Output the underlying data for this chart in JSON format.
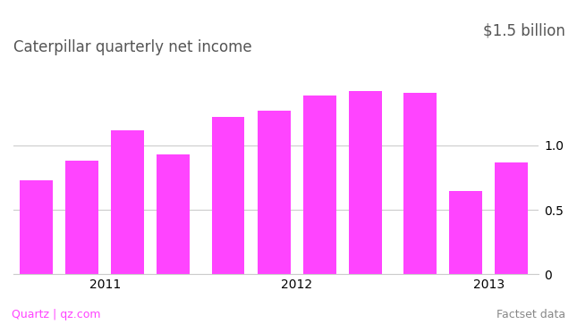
{
  "title": "Caterpillar quarterly net income",
  "right_label": "$1.5 billion",
  "footer_left": "Quartz | qz.com",
  "footer_right": "Factset data",
  "bar_color": "#ff44ff",
  "background_color": "#ffffff",
  "text_color": "#555555",
  "values": [
    0.73,
    0.88,
    1.12,
    0.93,
    1.22,
    1.27,
    1.39,
    1.42,
    1.41,
    0.65,
    0.87
  ],
  "x_positions": [
    0,
    1,
    2,
    3,
    4.2,
    5.2,
    6.2,
    7.2,
    8.4,
    9.4,
    10.4
  ],
  "year_label_positions": [
    {
      "label": "2011",
      "x": 1.5
    },
    {
      "label": "2012",
      "x": 5.7
    },
    {
      "label": "2013",
      "x": 9.9
    }
  ],
  "ylim": [
    0,
    1.65
  ],
  "yticks": [
    0,
    0.5,
    1.0
  ],
  "grid_color": "#cccccc",
  "bar_width": 0.72,
  "title_fontsize": 12,
  "tick_fontsize": 10,
  "footer_fontsize": 9
}
